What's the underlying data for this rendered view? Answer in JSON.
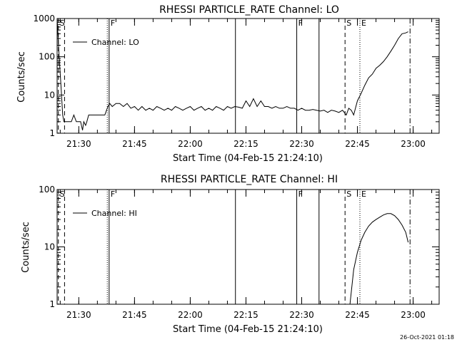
{
  "footer_timestamp": "26-Oct-2021 01:18",
  "chart_data": [
    {
      "type": "line",
      "title": "RHESSI PARTICLE_RATE Channel: LO",
      "xlabel": "Start Time (04-Feb-15 21:24:10)",
      "ylabel": "Counts/sec",
      "y_scale": "log",
      "ylim": [
        1,
        1000
      ],
      "yticks": [
        {
          "value": 1,
          "label": "1"
        },
        {
          "value": 10,
          "label": "10"
        },
        {
          "value": 100,
          "label": "100"
        },
        {
          "value": 1000,
          "label": "1000"
        }
      ],
      "xlim": [
        "21:24:10",
        "23:07:00"
      ],
      "xticks": [
        {
          "value": "21:30",
          "label": "21:30"
        },
        {
          "value": "21:45",
          "label": "21:45"
        },
        {
          "value": "22:00",
          "label": "22:00"
        },
        {
          "value": "22:15",
          "label": "22:15"
        },
        {
          "value": "22:30",
          "label": "22:30"
        },
        {
          "value": "22:45",
          "label": "22:45"
        },
        {
          "value": "23:00",
          "label": "23:00"
        }
      ],
      "legend": {
        "placement": "top-left",
        "entries": [
          "Channel: LO"
        ]
      },
      "grid": false,
      "markers": [
        {
          "time": "21:24:30",
          "style": "dashed",
          "label": "S"
        },
        {
          "time": "21:26:10",
          "style": "dashed",
          "label": ""
        },
        {
          "time": "21:37:40",
          "style": "dotted",
          "label": ""
        },
        {
          "time": "21:38:10",
          "style": "solid",
          "label": "F"
        },
        {
          "time": "22:12:10",
          "style": "solid",
          "label": ""
        },
        {
          "time": "22:28:40",
          "style": "solid",
          "label": "F"
        },
        {
          "time": "22:34:40",
          "style": "solid",
          "label": ""
        },
        {
          "time": "22:41:40",
          "style": "dashed",
          "label": "S"
        },
        {
          "time": "22:45:40",
          "style": "dotted",
          "label": "E"
        },
        {
          "time": "22:59:10",
          "style": "dashdot",
          "label": ""
        }
      ],
      "series": [
        {
          "x": [
            "21:24:10",
            "21:24:40",
            "21:25:10",
            "21:25:40",
            "21:26:00",
            "21:26:20",
            "21:26:40",
            "21:27:20",
            "21:28:00",
            "21:28:40",
            "21:29:20",
            "21:30:00",
            "21:30:30",
            "21:31:00",
            "21:31:20",
            "21:31:50",
            "21:32:10",
            "21:32:40",
            "21:33:10",
            "21:34:00",
            "21:35:00",
            "21:36:00",
            "21:37:00",
            "21:37:50",
            "21:38:20",
            "21:39:00",
            "21:40:00",
            "21:41:00",
            "21:42:00",
            "21:43:00",
            "21:44:00",
            "21:45:00",
            "21:46:00",
            "21:47:00",
            "21:48:00",
            "21:49:00",
            "21:50:00",
            "21:51:00",
            "21:52:00",
            "21:53:00",
            "21:54:00",
            "21:55:00",
            "21:56:00",
            "21:57:00",
            "21:58:00",
            "21:59:00",
            "22:00:00",
            "22:01:00",
            "22:02:00",
            "22:03:00",
            "22:04:00",
            "22:05:00",
            "22:06:00",
            "22:07:00",
            "22:08:00",
            "22:09:00",
            "22:10:00",
            "22:11:00",
            "22:12:00",
            "22:13:00",
            "22:14:00",
            "22:15:00",
            "22:16:00",
            "22:17:00",
            "22:18:00",
            "22:19:00",
            "22:20:00",
            "22:21:00",
            "22:22:00",
            "22:23:00",
            "22:24:00",
            "22:25:00",
            "22:26:00",
            "22:27:00",
            "22:28:00",
            "22:29:00",
            "22:30:00",
            "22:31:00",
            "22:32:00",
            "22:33:00",
            "22:34:00",
            "22:35:00",
            "22:36:00",
            "22:37:00",
            "22:38:00",
            "22:39:00",
            "22:40:00",
            "22:41:00",
            "22:42:00",
            "22:42:40",
            "22:43:20",
            "22:44:00",
            "22:45:00",
            "22:46:00",
            "22:47:00",
            "22:48:00",
            "22:49:00",
            "22:50:00",
            "22:51:00",
            "22:52:00",
            "22:53:00",
            "22:54:00",
            "22:55:00",
            "22:56:00",
            "22:57:00",
            "22:58:00",
            "22:58:40"
          ],
          "values": [
            1000,
            120,
            20,
            3,
            2,
            2,
            2,
            2,
            2,
            3,
            2,
            2,
            2,
            1.2,
            2,
            1.6,
            2,
            3,
            3,
            3,
            3,
            3,
            3,
            5,
            6,
            5,
            6,
            6,
            5,
            6,
            4.5,
            5,
            4,
            5,
            4,
            4.5,
            4,
            5,
            4.5,
            4,
            4.5,
            4,
            5,
            4.5,
            4,
            4.5,
            5,
            4,
            4.5,
            5,
            4,
            4.5,
            4,
            5,
            4.5,
            4,
            5,
            4.5,
            5,
            4.8,
            4.5,
            7,
            5,
            8,
            5,
            7,
            5,
            5,
            4.5,
            5,
            4.5,
            4.5,
            5,
            4.5,
            4.5,
            4,
            4.5,
            4,
            4,
            4.2,
            4,
            3.8,
            4,
            3.5,
            4,
            3.8,
            3.5,
            4,
            3,
            4.5,
            4,
            3,
            7,
            11,
            18,
            28,
            35,
            50,
            60,
            75,
            100,
            140,
            200,
            300,
            400,
            420,
            450
          ]
        }
      ]
    },
    {
      "type": "line",
      "title": "RHESSI PARTICLE_RATE Channel: HI",
      "xlabel": "Start Time (04-Feb-15 21:24:10)",
      "ylabel": "Counts/sec",
      "y_scale": "log",
      "ylim": [
        1,
        100
      ],
      "yticks": [
        {
          "value": 1,
          "label": "1"
        },
        {
          "value": 10,
          "label": "10"
        },
        {
          "value": 100,
          "label": "100"
        }
      ],
      "xlim": [
        "21:24:10",
        "23:07:00"
      ],
      "xticks": [
        {
          "value": "21:30",
          "label": "21:30"
        },
        {
          "value": "21:45",
          "label": "21:45"
        },
        {
          "value": "22:00",
          "label": "22:00"
        },
        {
          "value": "22:15",
          "label": "22:15"
        },
        {
          "value": "22:30",
          "label": "22:30"
        },
        {
          "value": "22:45",
          "label": "22:45"
        },
        {
          "value": "23:00",
          "label": "23:00"
        }
      ],
      "legend": {
        "placement": "top-left",
        "entries": [
          "Channel: HI"
        ]
      },
      "grid": false,
      "markers": [
        {
          "time": "21:24:30",
          "style": "dashed",
          "label": "S"
        },
        {
          "time": "21:26:10",
          "style": "dashed",
          "label": ""
        },
        {
          "time": "21:37:40",
          "style": "dotted",
          "label": ""
        },
        {
          "time": "21:38:10",
          "style": "solid",
          "label": "F"
        },
        {
          "time": "22:12:10",
          "style": "solid",
          "label": ""
        },
        {
          "time": "22:28:40",
          "style": "solid",
          "label": "F"
        },
        {
          "time": "22:34:40",
          "style": "solid",
          "label": ""
        },
        {
          "time": "22:41:40",
          "style": "dashed",
          "label": "S"
        },
        {
          "time": "22:45:40",
          "style": "dotted",
          "label": "E"
        },
        {
          "time": "22:59:10",
          "style": "dashdot",
          "label": ""
        }
      ],
      "series": [
        {
          "x": [
            "22:43:00",
            "22:43:30",
            "22:44:00",
            "22:45:00",
            "22:46:00",
            "22:47:00",
            "22:48:00",
            "22:49:00",
            "22:50:00",
            "22:51:00",
            "22:52:00",
            "22:53:00",
            "22:54:00",
            "22:55:00",
            "22:56:00",
            "22:57:00",
            "22:58:00",
            "22:58:40"
          ],
          "values": [
            1,
            2,
            4,
            8,
            13,
            18,
            23,
            27,
            30,
            33,
            36,
            38,
            38,
            35,
            30,
            24,
            18,
            12
          ]
        }
      ]
    }
  ]
}
